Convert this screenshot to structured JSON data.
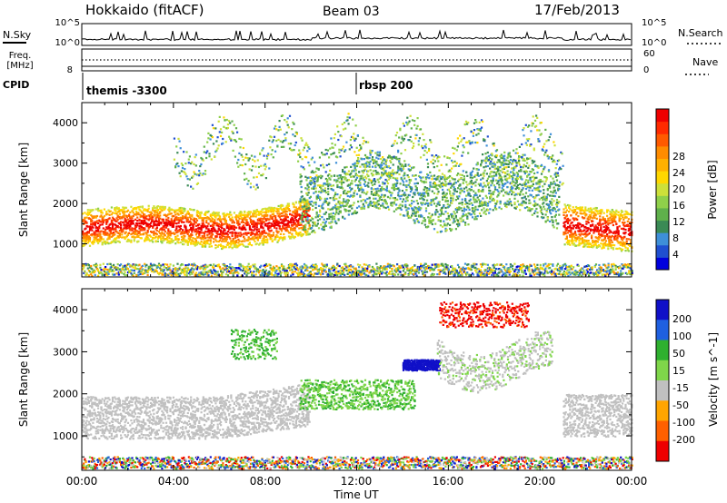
{
  "header": {
    "title": "Hokkaido (fitACF)",
    "beam": "Beam 03",
    "date": "17/Feb/2013"
  },
  "top_panels": {
    "nsky_label": "N.Sky",
    "nsearch_label": "N.Search",
    "nsky_ticks": [
      "10^5",
      "10^0"
    ],
    "nsearch_ticks": [
      "10^5",
      "10^0"
    ],
    "freq_label_1": "Freq.",
    "freq_label_2": "[MHz]",
    "freq_ticks": [
      "8"
    ],
    "nave_label": "Nave",
    "nave_ticks": [
      "60",
      "0"
    ],
    "cpid_label": "CPID",
    "cpid_entries": [
      {
        "name": "themis -3300",
        "start_hour": 0
      },
      {
        "name": "rbsp 200",
        "start_hour": 12
      }
    ]
  },
  "chart_data": [
    {
      "type": "heatmap",
      "title": "",
      "xlabel": "",
      "ylabel": "Slant Range [km]",
      "x_range_hours": [
        0,
        24
      ],
      "ylim": [
        180,
        4500
      ],
      "yticks": [
        "1000",
        "2000",
        "3000",
        "4000"
      ],
      "colorbar": {
        "label": "Power [dB]",
        "range": [
          0,
          32
        ],
        "ticks": [
          "4",
          "8",
          "12",
          "16",
          "20",
          "24",
          "28"
        ],
        "colors": [
          "#0000dd",
          "#1f4fd0",
          "#3e8fd8",
          "#3a8a55",
          "#5fb04b",
          "#8fd04a",
          "#cde03a",
          "#ffd700",
          "#ffb000",
          "#ff8c00",
          "#ff5a00",
          "#ff2a00",
          "#ee0000"
        ]
      },
      "features": [
        {
          "start_hour": 0,
          "end_hour": 10,
          "center_range_km": 1400,
          "dominant": "28 dB"
        },
        {
          "start_hour": 10,
          "end_hour": 20.5,
          "center_range_km": 2300,
          "dominant": "8 dB"
        },
        {
          "start_hour": 21,
          "end_hour": 24,
          "center_range_km": 1500,
          "dominant": "28 dB"
        }
      ]
    },
    {
      "type": "heatmap",
      "title": "",
      "xlabel": "Time UT",
      "ylabel": "Slant Range [km]",
      "x_range_hours": [
        0,
        24
      ],
      "ylim": [
        180,
        4500
      ],
      "xticks": [
        "00:00",
        "04:00",
        "08:00",
        "12:00",
        "16:00",
        "20:00",
        "00:00"
      ],
      "yticks": [
        "1000",
        "2000",
        "3000",
        "4000"
      ],
      "colorbar": {
        "label": "Velocity [m s^-1]",
        "ticks": [
          "200",
          "100",
          "50",
          "15",
          "-15",
          "-50",
          "-100",
          "-200"
        ],
        "colors": [
          "#1010c8",
          "#1f60e0",
          "#2fb02f",
          "#7fd64a",
          "#c0c0c0",
          "#ffa500",
          "#ff6000",
          "#ee0000"
        ]
      },
      "features": [
        {
          "start_hour": 0,
          "end_hour": 9.5,
          "center_range_km": 1500,
          "dominant": "-15 to 15 m/s"
        },
        {
          "start_hour": 14,
          "end_hour": 15.5,
          "center_range_km": 2700,
          "dominant": "200 m/s"
        },
        {
          "start_hour": 15.5,
          "end_hour": 19.5,
          "center_range_km": 3900,
          "dominant": "-200 m/s"
        },
        {
          "start_hour": 20.5,
          "end_hour": 24,
          "center_range_km": 1500,
          "dominant": "-15 to 15 m/s"
        }
      ]
    }
  ]
}
